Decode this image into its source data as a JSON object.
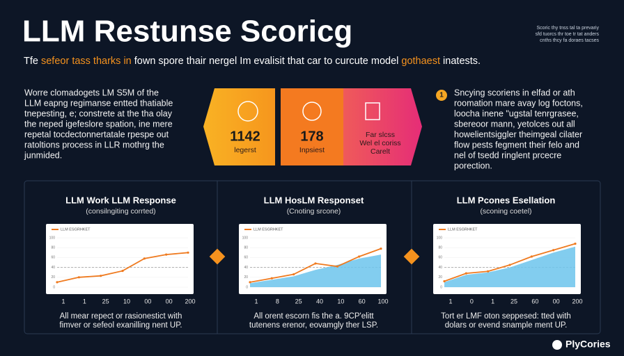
{
  "header": {
    "title": "LLM Restunse Scoricg",
    "corner_note": [
      "Scoric thy tnss tal ta prevariy",
      "sfd tuorcs thr toe tr tat anders",
      "cnths thcy fa doraes tacses"
    ],
    "subtitle": [
      "Tfe ",
      "sefeor tass tharks in",
      " fown spore thair nergel Im evalisit that car to curcute model ",
      "gothaest",
      " inatests."
    ]
  },
  "left_text": [
    "Worre clomadogets LM S5M of the",
    "LLM eapng regimanse entted thatiable",
    "tnepesting, e; constrete at the tha olay",
    "the neped igefeslore spation, ine mere",
    "repetal tocdectonnertatale rpespe out",
    "ratoltions process in LLR mothrg the",
    "junmided."
  ],
  "boxes": [
    {
      "lines": [
        "1142",
        "legerst"
      ]
    },
    {
      "lines": [
        "178",
        "Inpsiest"
      ]
    },
    {
      "lines": [
        "Far slcss",
        "Wel el coriss",
        "Carelt"
      ]
    }
  ],
  "right_text": {
    "badge": "1",
    "lines": [
      "Sncying scoriens in elfad or ath",
      "roomation mare avay log foctons,",
      "loocha inene \"ugstal tenrgrasee,",
      "sbereoor mann, yetolces out all",
      "howelientsiggler theimgeal cilater",
      "flow pests fegment their felo and",
      "nel of tsedd ringlent prcecre",
      "porection."
    ]
  },
  "chart_data": [
    {
      "type": "line",
      "title": "LLM Work LLM Response",
      "subtitle": "(consilngiting corrted)",
      "categories": [
        "1",
        "1",
        "25",
        "10",
        "00",
        "00",
        "200"
      ],
      "ylim": [
        0,
        100
      ],
      "yticks": [
        0,
        20,
        40,
        60,
        80,
        100
      ],
      "reference": 40,
      "series": [
        {
          "name": "LLM ESGRHKET",
          "color": "#ef7a1f",
          "style": "line",
          "values": [
            10,
            20,
            23,
            33,
            58,
            66,
            70
          ]
        }
      ],
      "caption": [
        "All mear repect or rasionestict with",
        "fimver or sefeol exanilling nent UP."
      ]
    },
    {
      "type": "line",
      "title": "LLM HosLM Responset",
      "subtitle": "(Cnoting srcone)",
      "categories": [
        "1",
        "8",
        "25",
        "40",
        "10",
        "60",
        "100"
      ],
      "ylim": [
        0,
        100
      ],
      "yticks": [
        0,
        20,
        40,
        60,
        80,
        100
      ],
      "reference": 40,
      "series": [
        {
          "color": "#6cc4ec",
          "style": "area",
          "values": [
            8,
            15,
            22,
            35,
            45,
            58,
            66
          ]
        },
        {
          "name": "LLM ESGRHKET",
          "color": "#ef7a1f",
          "style": "line",
          "values": [
            10,
            18,
            26,
            48,
            42,
            62,
            78
          ]
        }
      ],
      "caption": [
        "All orent escorn fis the a. 9CP'elitt",
        "tutenens erenor, eovamgly ther LSP."
      ]
    },
    {
      "type": "line",
      "title": "LLM Pcones Esellation",
      "subtitle": "(sconing coetel)",
      "categories": [
        "1",
        "0",
        "1",
        "25",
        "60",
        "00",
        "200"
      ],
      "ylim": [
        0,
        100
      ],
      "yticks": [
        0,
        20,
        40,
        60,
        80,
        100
      ],
      "reference": 40,
      "series": [
        {
          "color": "#6cc4ec",
          "style": "area",
          "values": [
            10,
            25,
            30,
            40,
            55,
            70,
            82
          ]
        },
        {
          "name": "LLM ESGRHKET",
          "color": "#ef7a1f",
          "style": "line",
          "values": [
            12,
            28,
            32,
            45,
            62,
            75,
            88
          ]
        }
      ],
      "caption": [
        "Tort er LMF oton seppesed: tted with",
        "dolars or evend snample ment UP."
      ]
    }
  ],
  "footer": {
    "logo": "PlyCories"
  }
}
